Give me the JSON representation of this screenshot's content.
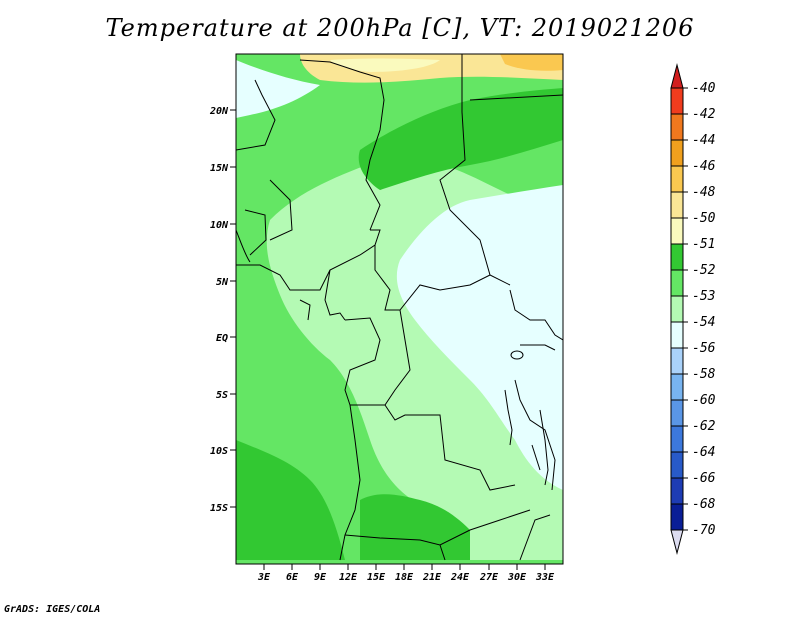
{
  "title": "Temperature at 200hPa [C], VT: 2019021206",
  "credit": "GrADS: IGES/COLA",
  "colors": {
    "c-40": "#d21e1e",
    "c-42": "#f03c1e",
    "c-44": "#f0781e",
    "c-46": "#f0a01e",
    "c-48": "#fac850",
    "c-50": "#fae696",
    "c-51": "#fafabe",
    "c-52": "#32c832",
    "c-53": "#64e664",
    "c-54": "#b4fab4",
    "c-55": "#e6ffff",
    "c-56": "#aad2fa",
    "c-58": "#78b4f0",
    "c-60": "#5a96e6",
    "c-62": "#3c78dc",
    "c-64": "#285ac8",
    "c-66": "#1e3cb4",
    "c-68": "#0a1e96",
    "c-70": "#050a64",
    "under": "#dcdcf0",
    "border": "#000000"
  },
  "map": {
    "lat_labels": [
      "20N",
      "15N",
      "10N",
      "5N",
      "EQ",
      "5S",
      "10S",
      "15S"
    ],
    "lon_labels": [
      "3E",
      "6E",
      "9E",
      "12E",
      "15E",
      "18E",
      "21E",
      "24E",
      "27E",
      "30E",
      "33E"
    ]
  },
  "legend": {
    "labels": [
      "-40",
      "-42",
      "-44",
      "-46",
      "-48",
      "-50",
      "-51",
      "-52",
      "-53",
      "-54",
      "-56",
      "-58",
      "-60",
      "-62",
      "-64",
      "-66",
      "-68",
      "-70"
    ]
  }
}
